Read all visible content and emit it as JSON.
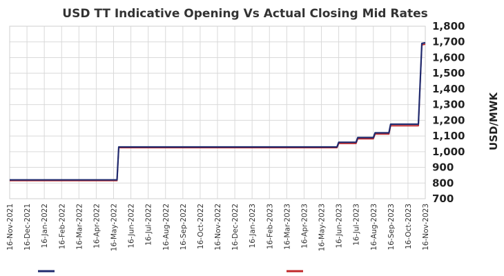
{
  "chart_data": {
    "type": "line",
    "title": "USD TT Indicative Opening Vs Actual Closing Mid Rates",
    "ylabel": "USD/MWK",
    "xlabel": "",
    "ylim": [
      700,
      1800
    ],
    "yticks": [
      "1,800",
      "1,700",
      "1,600",
      "1,500",
      "1,400",
      "1,300",
      "1,200",
      "1,100",
      "1,000",
      "900",
      "800",
      "700"
    ],
    "categories": [
      "16-Nov-2021",
      "16-Dec-2021",
      "16-Jan-2022",
      "16-Feb-2022",
      "16-Mar-2022",
      "16-Apr-2022",
      "16-May-2022",
      "16-Jun-2022",
      "16-Jul-2022",
      "16-Aug-2022",
      "16-Sep-2022",
      "16-Oct-2022",
      "16-Nov-2022",
      "16-Dec-2022",
      "16-Jan-2023",
      "16-Feb-2023",
      "16-Mar-2023",
      "16-Apr-2023",
      "16-May-2023",
      "16-Jun-2023",
      "16-Jul-2023",
      "16-Aug-2023",
      "16-Sep-2023",
      "16-Oct-2023",
      "16-Nov-2023"
    ],
    "grid": true,
    "legend_position": "bottom",
    "series": [
      {
        "name": "",
        "color": "#1f2a6e",
        "points": [
          [
            0,
            820
          ],
          [
            6.2,
            820
          ],
          [
            6.3,
            1030
          ],
          [
            18.9,
            1030
          ],
          [
            19.0,
            1060
          ],
          [
            20.0,
            1060
          ],
          [
            20.1,
            1090
          ],
          [
            21.0,
            1090
          ],
          [
            21.1,
            1120
          ],
          [
            21.9,
            1120
          ],
          [
            22.0,
            1175
          ],
          [
            23.6,
            1175
          ],
          [
            23.8,
            1690
          ],
          [
            24.0,
            1695
          ]
        ]
      },
      {
        "name": "",
        "color": "#c0282a",
        "points": [
          [
            0,
            815
          ],
          [
            6.2,
            815
          ],
          [
            6.3,
            1025
          ],
          [
            18.9,
            1025
          ],
          [
            19.0,
            1052
          ],
          [
            20.0,
            1052
          ],
          [
            20.1,
            1082
          ],
          [
            21.0,
            1082
          ],
          [
            21.1,
            1112
          ],
          [
            21.9,
            1112
          ],
          [
            22.0,
            1165
          ],
          [
            23.6,
            1165
          ],
          [
            23.8,
            1680
          ],
          [
            24.0,
            1685
          ]
        ]
      }
    ]
  }
}
